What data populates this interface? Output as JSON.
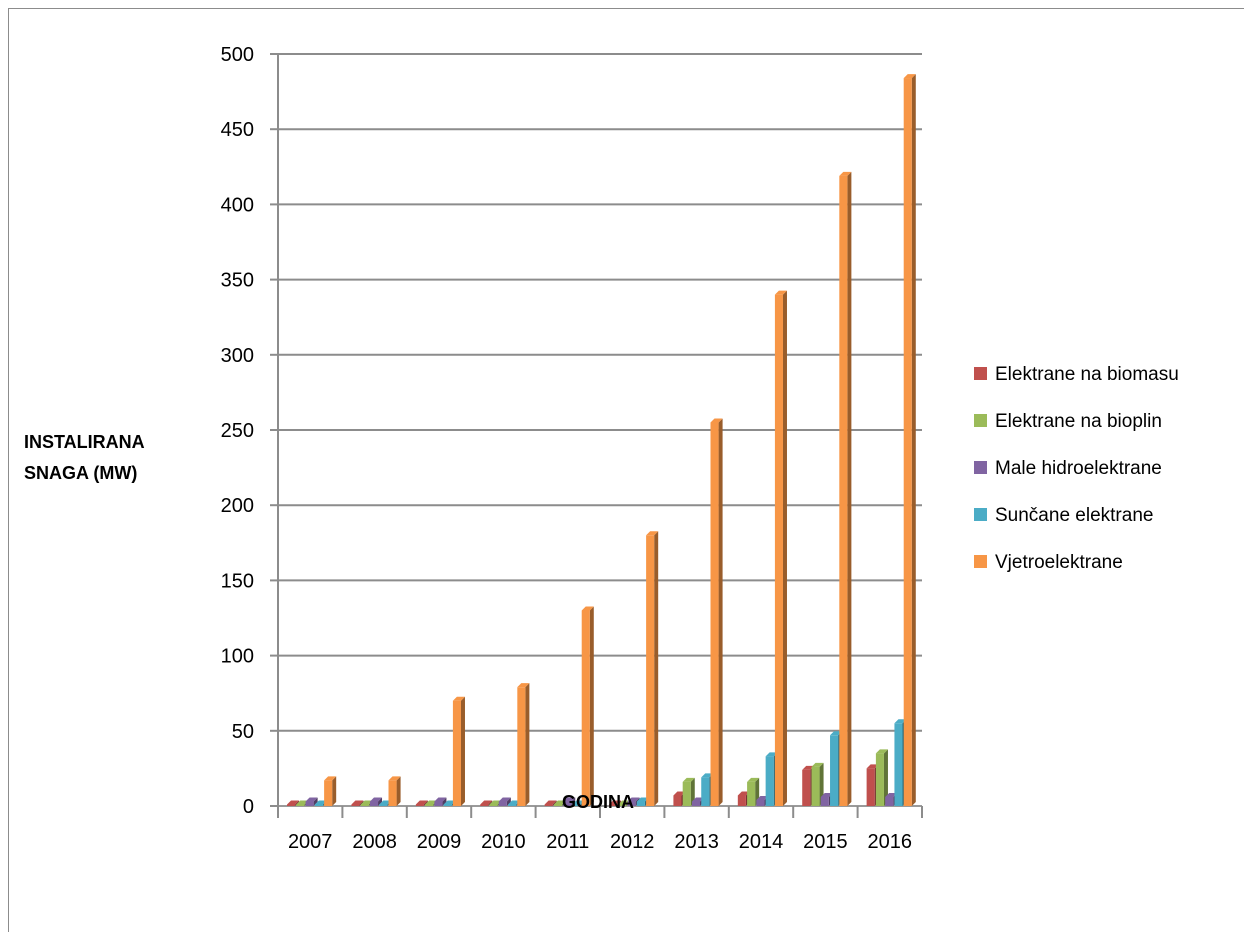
{
  "chart_data": {
    "type": "bar",
    "categories": [
      "2007",
      "2008",
      "2009",
      "2010",
      "2011",
      "2012",
      "2013",
      "2014",
      "2015",
      "2016"
    ],
    "series": [
      {
        "name": "Elektrane na biomasu",
        "color": "#c0504d",
        "values": [
          0.5,
          0.5,
          0.5,
          0.5,
          0.5,
          0.5,
          7,
          7,
          24,
          25
        ]
      },
      {
        "name": "Elektrane na bioplin",
        "color": "#9bbb59",
        "values": [
          0.5,
          0.5,
          0.5,
          0.5,
          0.5,
          0.5,
          16,
          16,
          26,
          35
        ]
      },
      {
        "name": "Male hidroelektrane",
        "color": "#8064a2",
        "values": [
          3,
          3,
          3,
          3,
          3,
          3,
          3,
          4,
          6,
          6
        ]
      },
      {
        "name": "Sunčane elektrane",
        "color": "#4bacc6",
        "values": [
          0,
          0,
          0,
          0,
          0,
          3,
          19,
          33,
          47,
          55
        ]
      },
      {
        "name": "Vjetroelektrane",
        "color": "#f79646",
        "values": [
          17,
          17,
          70,
          79,
          130,
          180,
          255,
          340,
          419,
          484
        ]
      }
    ],
    "xlabel": "GODINA",
    "ylabel": "INSTALIRANA SNAGA (MW)",
    "ylabel_lines": [
      "INSTALIRANA",
      "SNAGA (MW)"
    ],
    "ylim": [
      0,
      500
    ],
    "yticks": [
      "0",
      "50",
      "100",
      "150",
      "200",
      "250",
      "300",
      "350",
      "400",
      "450",
      "500"
    ],
    "grid": true,
    "legend_position": "right"
  }
}
